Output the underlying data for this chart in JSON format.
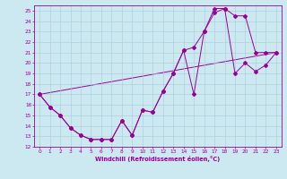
{
  "xlabel": "Windchill (Refroidissement éolien,°C)",
  "bg_color": "#cce8f0",
  "grid_color": "#a8ccd8",
  "line_color": "#990099",
  "xlim": [
    -0.5,
    23.5
  ],
  "ylim": [
    12,
    25.5
  ],
  "xticks": [
    0,
    1,
    2,
    3,
    4,
    5,
    6,
    7,
    8,
    9,
    10,
    11,
    12,
    13,
    14,
    15,
    16,
    17,
    18,
    19,
    20,
    21,
    22,
    23
  ],
  "yticks": [
    12,
    13,
    14,
    15,
    16,
    17,
    18,
    19,
    20,
    21,
    22,
    23,
    24,
    25
  ],
  "curve1_x": [
    0,
    1,
    2,
    3,
    4,
    5,
    6,
    7,
    8,
    9,
    10,
    11,
    12,
    13,
    14,
    15,
    16,
    17,
    18,
    19,
    20,
    21,
    22,
    23
  ],
  "curve1_y": [
    17.0,
    15.8,
    15.0,
    13.8,
    13.1,
    12.7,
    12.7,
    12.7,
    14.5,
    13.1,
    15.5,
    15.3,
    17.3,
    19.0,
    21.2,
    21.5,
    23.0,
    25.2,
    25.2,
    19.0,
    20.0,
    19.2,
    19.8,
    21.0
  ],
  "curve2_x": [
    0,
    1,
    2,
    3,
    4,
    5,
    6,
    7,
    8,
    9,
    10,
    11,
    12,
    13,
    14,
    15,
    16,
    17,
    18,
    19,
    20,
    21,
    22,
    23
  ],
  "curve2_y": [
    17.0,
    15.8,
    15.0,
    13.8,
    13.1,
    12.7,
    12.7,
    12.7,
    14.5,
    13.1,
    15.5,
    15.3,
    17.3,
    19.0,
    21.2,
    17.0,
    23.0,
    24.8,
    25.2,
    24.5,
    24.5,
    21.0,
    21.0,
    21.0
  ],
  "curve3_x": [
    0,
    23
  ],
  "curve3_y": [
    17.0,
    21.0
  ],
  "tick_fontsize": 4.2,
  "xlabel_fontsize": 4.8,
  "marker_size": 2.0,
  "linewidth": 0.7
}
